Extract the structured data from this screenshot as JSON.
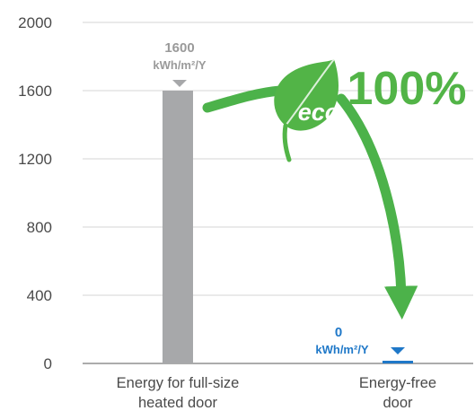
{
  "chart_data": {
    "type": "bar",
    "categories": [
      "Energy for full-size heated door",
      "Energy-free door"
    ],
    "category_lines": [
      [
        "Energy for full-size",
        "heated door"
      ],
      [
        "Energy-free",
        "door"
      ]
    ],
    "values": [
      1600,
      0
    ],
    "bar_colors": [
      "#a7a8aa",
      "#1f78c8"
    ],
    "value_labels": [
      {
        "value": "1600",
        "unit": "kWh/m²/Y"
      },
      {
        "value": "0",
        "unit": "kWh/m²/Y"
      }
    ],
    "yticks": [
      "0",
      "400",
      "800",
      "1200",
      "1600",
      "2000"
    ],
    "ylim": [
      0,
      2000
    ],
    "grid": true,
    "annotation": {
      "badge": "eco",
      "text": "100%",
      "color": "#52b447"
    }
  }
}
